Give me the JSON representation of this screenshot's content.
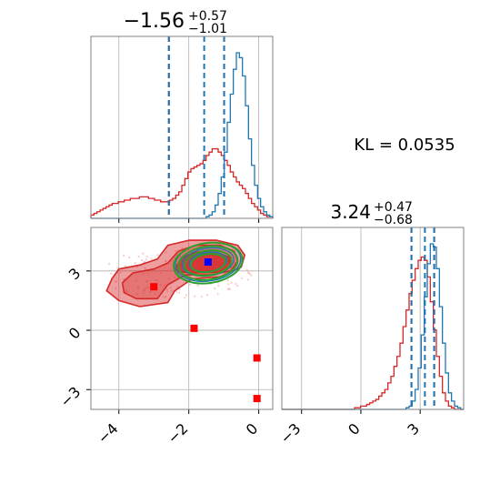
{
  "chart_data": {
    "type": "corner",
    "colors": {
      "blue": "#1f77b4",
      "red": "#d62728",
      "green": "#2ca02c",
      "marker_blue": "#0000ff",
      "marker_red": "#ff0000"
    },
    "kl_text": "KL = 0.0535",
    "param1": {
      "title": {
        "median": "−1.56",
        "plus": "+0.57",
        "minus": "−1.01"
      },
      "range": [
        -4.8,
        0.4
      ],
      "ticks": [
        -4,
        -2,
        0
      ],
      "tick_labels": [
        "−4",
        "−2",
        "0"
      ],
      "lines_blue": [
        -2.57,
        -1.56,
        -0.99
      ],
      "lines_red": [
        -2.57,
        -0.99
      ],
      "hist_blue": [
        0,
        0,
        0,
        0,
        0,
        0,
        0,
        0,
        0,
        0,
        0,
        0,
        0,
        0,
        0,
        0,
        0,
        0,
        0,
        0,
        0,
        0,
        0,
        0,
        0,
        0,
        0,
        0,
        0,
        0,
        0,
        0,
        0,
        0,
        0,
        0,
        0,
        0,
        0.01,
        0.02,
        0.04,
        0.08,
        0.15,
        0.25,
        0.4,
        0.58,
        0.75,
        0.9,
        1.0,
        0.97,
        0.86,
        0.68,
        0.48,
        0.32,
        0.2,
        0.12,
        0.07,
        0.04,
        0.02,
        0.01
      ],
      "hist_red": [
        0.02,
        0.03,
        0.04,
        0.05,
        0.06,
        0.07,
        0.08,
        0.09,
        0.09,
        0.1,
        0.1,
        0.11,
        0.11,
        0.12,
        0.12,
        0.12,
        0.13,
        0.13,
        0.13,
        0.12,
        0.12,
        0.11,
        0.11,
        0.1,
        0.1,
        0.1,
        0.11,
        0.12,
        0.14,
        0.16,
        0.2,
        0.24,
        0.28,
        0.3,
        0.31,
        0.32,
        0.33,
        0.35,
        0.38,
        0.4,
        0.42,
        0.42,
        0.4,
        0.38,
        0.35,
        0.32,
        0.28,
        0.25,
        0.22,
        0.2,
        0.18,
        0.15,
        0.12,
        0.09,
        0.07,
        0.05,
        0.03,
        0.02,
        0.01,
        0.01
      ]
    },
    "param2": {
      "title": {
        "median": "3.24",
        "plus": "+0.47",
        "minus": "−0.68"
      },
      "range": [
        -4.0,
        5.2
      ],
      "ticks": [
        -3,
        0,
        3
      ],
      "tick_labels": [
        "−3",
        "0",
        "3"
      ],
      "lines_blue": [
        2.56,
        3.24,
        3.71
      ],
      "lines_red": [
        2.56,
        3.71
      ],
      "hist_blue": [
        0,
        0,
        0,
        0,
        0,
        0,
        0,
        0,
        0,
        0,
        0,
        0,
        0,
        0,
        0,
        0,
        0,
        0,
        0,
        0,
        0,
        0,
        0,
        0,
        0,
        0,
        0,
        0,
        0,
        0,
        0,
        0,
        0,
        0,
        0,
        0,
        0,
        0,
        0,
        0,
        0,
        0.01,
        0.02,
        0.05,
        0.12,
        0.25,
        0.45,
        0.68,
        0.88,
        1.0,
        0.98,
        0.85,
        0.62,
        0.4,
        0.22,
        0.1,
        0.05,
        0.02,
        0.01,
        0
      ],
      "hist_red": [
        0,
        0,
        0,
        0,
        0,
        0,
        0,
        0,
        0,
        0,
        0,
        0,
        0,
        0,
        0,
        0,
        0,
        0,
        0,
        0,
        0,
        0,
        0,
        0,
        0.01,
        0.01,
        0.02,
        0.02,
        0.03,
        0.04,
        0.05,
        0.06,
        0.08,
        0.1,
        0.12,
        0.16,
        0.2,
        0.26,
        0.32,
        0.4,
        0.5,
        0.6,
        0.7,
        0.78,
        0.85,
        0.9,
        0.92,
        0.9,
        0.8,
        0.65,
        0.48,
        0.32,
        0.2,
        0.1,
        0.05,
        0.02,
        0.01,
        0,
        0,
        0
      ]
    },
    "markers": {
      "blue": [
        {
          "x": -1.45,
          "y": 3.45
        }
      ],
      "red": [
        {
          "x": -3.0,
          "y": 2.2
        },
        {
          "x": -1.85,
          "y": 0.1
        },
        {
          "x": -0.05,
          "y": -1.4
        },
        {
          "x": -0.05,
          "y": -3.45
        }
      ]
    }
  }
}
